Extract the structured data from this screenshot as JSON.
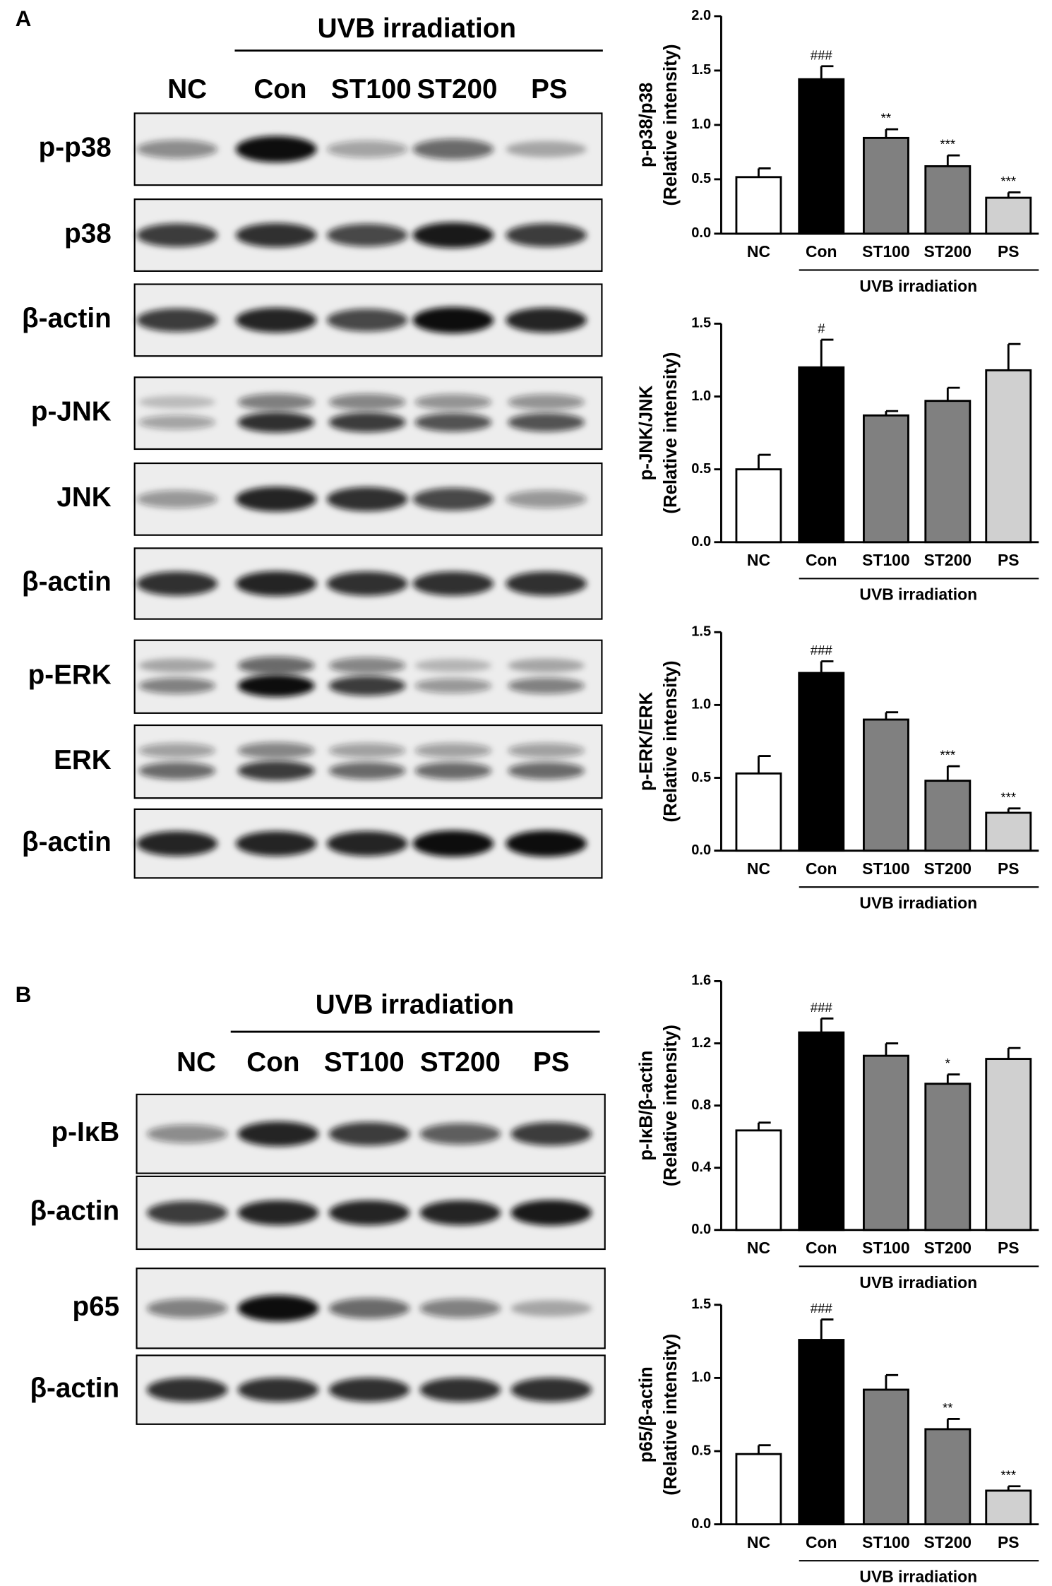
{
  "panels": [
    {
      "letter": "A",
      "group_label": "UVB irradiation",
      "lanes": [
        "NC",
        "Con",
        "ST100",
        "ST200",
        "PS"
      ],
      "rows": [
        "p-p38",
        "p38",
        "β-actin",
        "p-JNK",
        "JNK",
        "β-actin",
        "p-ERK",
        "ERK",
        "β-actin"
      ]
    },
    {
      "letter": "B",
      "group_label": "UVB irradiation",
      "lanes": [
        "NC",
        "Con",
        "ST100",
        "ST200",
        "PS"
      ],
      "rows": [
        "p-IκB",
        "β-actin",
        "p65",
        "β-actin"
      ]
    }
  ],
  "chart_data": [
    {
      "type": "bar",
      "ylabel": [
        "p-p38/p38",
        "(Relative intensity)"
      ],
      "categories": [
        "NC",
        "Con",
        "ST100",
        "ST200",
        "PS"
      ],
      "values": [
        0.52,
        1.42,
        0.88,
        0.62,
        0.33
      ],
      "errors": [
        0.08,
        0.12,
        0.08,
        0.1,
        0.05
      ],
      "annotations": [
        null,
        "###",
        "**",
        "***",
        "***"
      ],
      "colors": [
        "#ffffff",
        "#000000",
        "#808080",
        "#808080",
        "#d0d0d0"
      ],
      "group_label": "UVB irradiation",
      "ylim": [
        0,
        2
      ],
      "yticks": [
        {
          "value": 0,
          "label": "0.0"
        },
        {
          "value": 0.5,
          "label": "0.5"
        },
        {
          "value": 1,
          "label": "1.0"
        },
        {
          "value": 1.5,
          "label": "1.5"
        },
        {
          "value": 2,
          "label": "2.0"
        }
      ]
    },
    {
      "type": "bar",
      "ylabel": [
        "p-JNK/JNK",
        "(Relative intensity)"
      ],
      "categories": [
        "NC",
        "Con",
        "ST100",
        "ST200",
        "PS"
      ],
      "values": [
        0.5,
        1.2,
        0.87,
        0.97,
        1.18
      ],
      "errors": [
        0.1,
        0.19,
        0.03,
        0.09,
        0.18
      ],
      "annotations": [
        null,
        "#",
        null,
        null,
        null
      ],
      "colors": [
        "#ffffff",
        "#000000",
        "#808080",
        "#808080",
        "#d0d0d0"
      ],
      "group_label": "UVB irradiation",
      "ylim": [
        0,
        1.5
      ],
      "yticks": [
        {
          "value": 0,
          "label": "0.0"
        },
        {
          "value": 0.5,
          "label": "0.5"
        },
        {
          "value": 1,
          "label": "1.0"
        },
        {
          "value": 1.5,
          "label": "1.5"
        }
      ]
    },
    {
      "type": "bar",
      "ylabel": [
        "p-ERK/ERK",
        "(Relative intensity)"
      ],
      "categories": [
        "NC",
        "Con",
        "ST100",
        "ST200",
        "PS"
      ],
      "values": [
        0.53,
        1.22,
        0.9,
        0.48,
        0.26
      ],
      "errors": [
        0.12,
        0.08,
        0.05,
        0.1,
        0.03
      ],
      "annotations": [
        null,
        "###",
        null,
        "***",
        "***"
      ],
      "colors": [
        "#ffffff",
        "#000000",
        "#808080",
        "#808080",
        "#d0d0d0"
      ],
      "group_label": "UVB irradiation",
      "ylim": [
        0,
        1.5
      ],
      "yticks": [
        {
          "value": 0,
          "label": "0.0"
        },
        {
          "value": 0.5,
          "label": "0.5"
        },
        {
          "value": 1,
          "label": "1.0"
        },
        {
          "value": 1.5,
          "label": "1.5"
        }
      ]
    },
    {
      "type": "bar",
      "ylabel": [
        "p-IκB/β-actin",
        "(Relative intensity)"
      ],
      "categories": [
        "NC",
        "Con",
        "ST100",
        "ST200",
        "PS"
      ],
      "values": [
        0.64,
        1.27,
        1.12,
        0.94,
        1.1
      ],
      "errors": [
        0.05,
        0.09,
        0.08,
        0.06,
        0.07
      ],
      "annotations": [
        null,
        "###",
        null,
        "*",
        null
      ],
      "colors": [
        "#ffffff",
        "#000000",
        "#808080",
        "#808080",
        "#d0d0d0"
      ],
      "group_label": "UVB irradiation",
      "ylim": [
        0,
        1.6
      ],
      "yticks": [
        {
          "value": 0,
          "label": "0.0"
        },
        {
          "value": 0.4,
          "label": "0.4"
        },
        {
          "value": 0.8,
          "label": "0.8"
        },
        {
          "value": 1.2,
          "label": "1.2"
        },
        {
          "value": 1.6,
          "label": "1.6"
        }
      ]
    },
    {
      "type": "bar",
      "ylabel": [
        "p65/β-actin",
        "(Relative intensity)"
      ],
      "categories": [
        "NC",
        "Con",
        "ST100",
        "ST200",
        "PS"
      ],
      "values": [
        0.48,
        1.26,
        0.92,
        0.65,
        0.23
      ],
      "errors": [
        0.06,
        0.14,
        0.1,
        0.07,
        0.03
      ],
      "annotations": [
        null,
        "###",
        null,
        "**",
        "***"
      ],
      "colors": [
        "#ffffff",
        "#000000",
        "#808080",
        "#808080",
        "#d0d0d0"
      ],
      "group_label": "UVB irradiation",
      "ylim": [
        0,
        1.5
      ],
      "yticks": [
        {
          "value": 0,
          "label": "0.0"
        },
        {
          "value": 0.5,
          "label": "0.5"
        },
        {
          "value": 1,
          "label": "1.0"
        },
        {
          "value": 1.5,
          "label": "1.5"
        }
      ]
    }
  ]
}
